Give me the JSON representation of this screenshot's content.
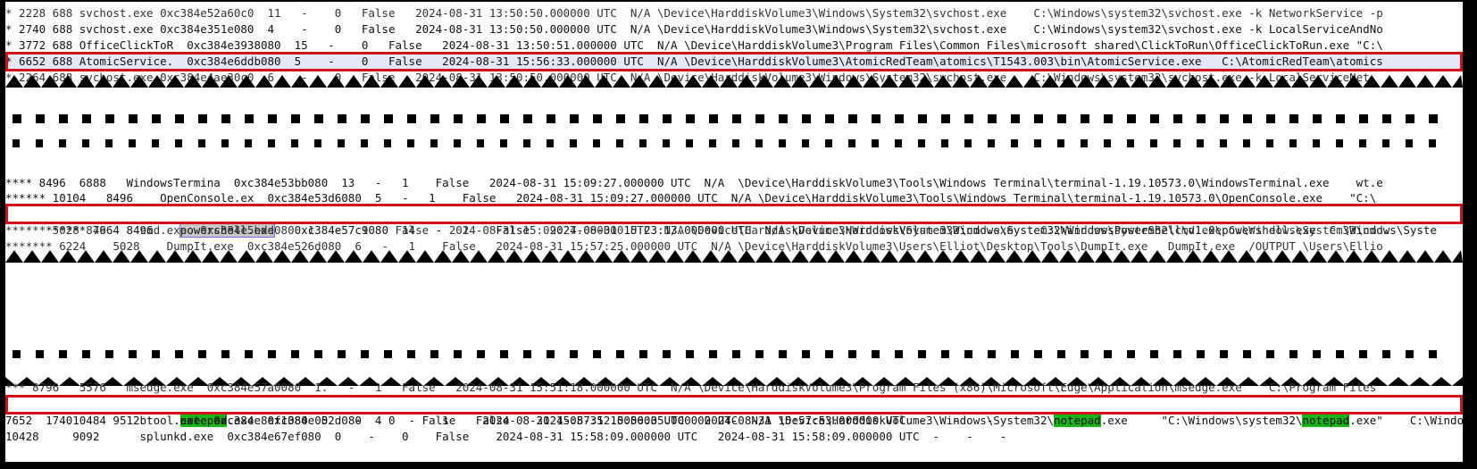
{
  "panel1": {
    "rows": [
      "* 2228 688 svchost.exe 0xc384e52a60c0  11   -    0   False   2024-08-31 13:50:50.000000 UTC  N/A \\Device\\HarddiskVolume3\\Windows\\System32\\svchost.exe    C:\\Windows\\system32\\svchost.exe -k NetworkService -p",
      "* 2740 688 svchost.exe 0xc384e351e080  4    -    0   False   2024-08-31 13:50:50.000000 UTC  N/A \\Device\\HarddiskVolume3\\Windows\\System32\\svchost.exe    C:\\Windows\\system32\\svchost.exe -k LocalServiceAndNo",
      "* 3772 688 OfficeClickToR  0xc384e3938080  15   -    0   False   2024-08-31 13:50:51.000000 UTC  N/A \\Device\\HarddiskVolume3\\Program Files\\Common Files\\microsoft shared\\ClickToRun\\OfficeClickToRun.exe \"C:\\",
      "* 6652 688 AtomicService.  0xc384e6ddb080  5    -    0   False   2024-08-31 15:56:33.000000 UTC  N/A \\Device\\HarddiskVolume3\\AtomicRedTeam\\atomics\\T1543.003\\bin\\AtomicService.exe   C:\\AtomicRedTeam\\atomics",
      "* 2264 688 svchost.exe 0xc384e4ae30c0  6    -    0   False   2024-08-31 13:50:50.000000 UTC  N/A \\Device\\HarddiskVolume3\\Windows\\System32\\svchost.exe    C:\\Windows\\system32\\svchost.exe -k LocalServiceNet"
    ]
  },
  "panel2": {
    "rows": [
      "**** 8496  6888   WindowsTermina  0xc384e53bb080  13   -   1    False   2024-08-31 15:09:27.000000 UTC  N/A  \\Device\\HarddiskVolume3\\Tools\\Windows Terminal\\terminal-1.19.10573.0\\WindowsTerminal.exe    wt.e",
      "****** 10104   8496    OpenConsole.ex  0xc384e53d6080  5   -   1    False   2024-08-31 15:09:27.000000 UTC  N/A \\Device\\HarddiskVolume3\\Tools\\Windows Terminal\\terminal-1.19.10573.0\\OpenConsole.exe    \"C:\\",
      "****** 7664 8496    ",
      "****** 5028 8496    cmd.exe  0xc384e5bdd080  1   -   1    False   2024-08-31 15:09:27.000000 UTC  N/A \\Device\\HarddiskVolume3\\Windows\\System32\\cmd.exe    C:\\Windows\\system32\\cmd.exe C:\\Windows\\System32\\cmd.",
      "******* 6224    5028    DumpIt.exe  0xc384e526d080  6   -   1    False   2024-08-31 15:57:25.000000 UTC  N/A \\Device\\HarddiskVolume3\\Users\\Elliot\\Desktop\\Tools\\DumpIt.exe   DumpIt.exe  /OUTPUT \\Users\\Ellio"
    ],
    "ps_prefix": "****** 7664 8496    ",
    "ps_word": "powershell.exe",
    "ps_rest": "   0xc384e57c9080  14   -   1    False   2024-08-31 15:23:13.000000 UTC  N/A \\Device\\HarddiskVolume3\\Windows\\System32\\WindowsPowerShell\\v1.0\\powershell.exe  C:\\Windows\\Syste"
  },
  "panel3": {
    "row0": "*** 8796   5576   msedge.exe  0xc384e57a0080  1.   -   1   False   2024-08-31 15:51:18.000000 UTC  N/A \\Device\\HarddiskVolume3\\Program Files (x86)\\Microsoft\\Edge\\Application\\msedge.exe   \"C:\\Program Files",
    "np_a": "1740      9512      ",
    "np_find1": "notepad",
    "np_b": ".exe  0xc384e052d080  4    -    1    False    2024-08-31 15:56:35.000000 UTC  N/A \\Device\\HarddiskVolume3\\Windows\\System32\\",
    "np_find2": "notepad",
    "np_c": ".exe     \"C:\\Windows\\system32\\",
    "np_find3": "notepad",
    "np_d": ".exe\"    C:\\Windows\\s",
    "row2": "7652      10484     btool.exe  0xc384e8ef1080  0    -    0    False    2024-08-31 15:57:52.000000 UTC   2024-08-31 15:57:53.000000 UTC  -    -    -",
    "row3": "10428     9092      splunkd.exe  0xc384e67ef080  0    -    0    False    2024-08-31 15:58:09.000000 UTC   2024-08-31 15:58:09.000000 UTC  -    -    -"
  },
  "colors": {
    "highlight_border": "#d0101a",
    "find_match": "#18b518",
    "selection_row": "#e6e7f4"
  }
}
